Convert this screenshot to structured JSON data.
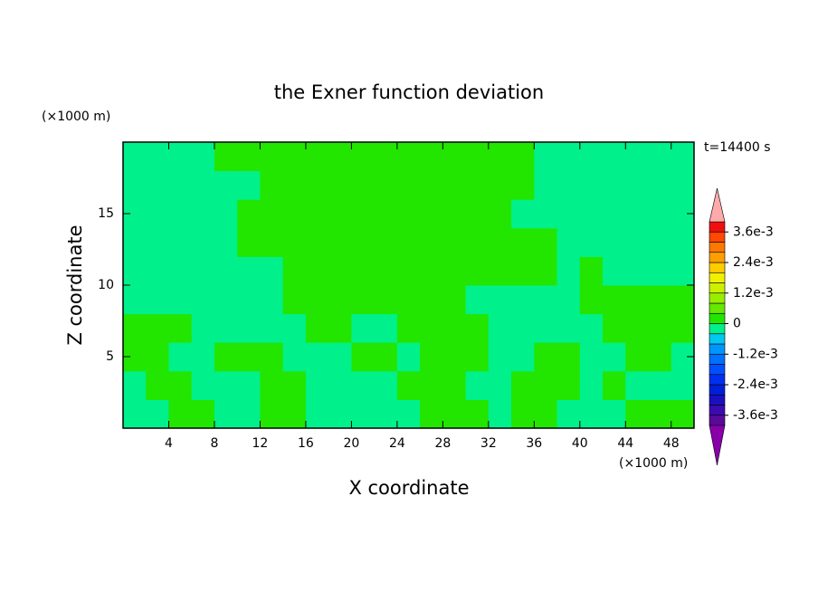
{
  "chart_data": {
    "type": "contour",
    "title": "the Exner function deviation",
    "x_label": "X coordinate",
    "y_label": "Z coordinate",
    "x_unit": "(×1000 m)",
    "y_unit": "(×1000 m)",
    "annotation": "t=14400 s",
    "xlim": [
      0,
      50
    ],
    "ylim": [
      0,
      20
    ],
    "xticks": [
      4,
      8,
      12,
      16,
      20,
      24,
      28,
      32,
      36,
      40,
      44,
      48
    ],
    "yticks": [
      5,
      10,
      15
    ],
    "x": [
      1,
      3,
      5,
      7,
      9,
      11,
      13,
      15,
      17,
      19,
      21,
      23,
      25,
      27,
      29,
      31,
      33,
      35,
      37,
      39,
      41,
      43,
      45,
      47,
      49
    ],
    "y": [
      1,
      3,
      5,
      7,
      9,
      11,
      13,
      15,
      17,
      19
    ],
    "z": [
      [
        -0.0002,
        -0.0002,
        0.0002,
        0.0002,
        -0.0002,
        -0.0002,
        0.0002,
        0.0002,
        -0.0002,
        -0.0002,
        -0.0002,
        -0.0002,
        -0.0002,
        0.0002,
        0.0002,
        0.0002,
        -0.0002,
        0.0002,
        0.0002,
        -0.0002,
        -0.0002,
        -0.0002,
        0.0002,
        0.0002,
        0.0002
      ],
      [
        -0.0002,
        0.0002,
        0.0002,
        -0.0002,
        -0.0002,
        -0.0002,
        0.0002,
        0.0002,
        -0.0002,
        -0.0002,
        -0.0002,
        -0.0002,
        0.0002,
        0.0002,
        0.0002,
        -0.0002,
        -0.0002,
        0.0002,
        0.0002,
        0.0002,
        -0.0002,
        0.0002,
        -0.0002,
        -0.0002,
        -0.0002
      ],
      [
        0.0002,
        0.0002,
        -0.0002,
        -0.0002,
        0.0002,
        0.0002,
        0.0002,
        -0.0002,
        -0.0002,
        -0.0002,
        0.0002,
        0.0002,
        -0.0002,
        0.0002,
        0.0002,
        0.0002,
        -0.0002,
        -0.0002,
        0.0002,
        0.0002,
        -0.0002,
        -0.0002,
        0.0002,
        0.0002,
        -0.0002
      ],
      [
        0.0002,
        0.0002,
        0.0002,
        -0.0002,
        -0.0002,
        -0.0002,
        -0.0002,
        -0.0002,
        0.0002,
        0.0002,
        -0.0002,
        -0.0002,
        0.0002,
        0.0002,
        0.0002,
        0.0002,
        -0.0002,
        -0.0002,
        -0.0002,
        -0.0002,
        -0.0002,
        0.0002,
        0.0002,
        0.0002,
        0.0002
      ],
      [
        -0.0002,
        -0.0002,
        -0.0002,
        -0.0002,
        -0.0002,
        -0.0002,
        -0.0002,
        0.0002,
        0.0002,
        0.0002,
        0.0002,
        0.0002,
        0.0002,
        0.0002,
        0.0002,
        -0.0002,
        -0.0002,
        -0.0002,
        -0.0002,
        -0.0002,
        0.0002,
        0.0002,
        0.0002,
        0.0002,
        0.0002
      ],
      [
        -0.0002,
        -0.0002,
        -0.0002,
        -0.0002,
        -0.0002,
        -0.0002,
        -0.0002,
        0.0002,
        0.0002,
        0.0002,
        0.0002,
        0.0002,
        0.0002,
        0.0002,
        0.0002,
        0.0002,
        0.0002,
        0.0002,
        0.0002,
        -0.0002,
        0.0002,
        -0.0002,
        -0.0002,
        -0.0002,
        -0.0002
      ],
      [
        -0.0002,
        -0.0002,
        -0.0002,
        -0.0002,
        -0.0002,
        0.0002,
        0.0002,
        0.0002,
        0.0002,
        0.0002,
        0.0002,
        0.0002,
        0.0002,
        0.0002,
        0.0002,
        0.0002,
        0.0002,
        0.0002,
        0.0002,
        -0.0002,
        -0.0002,
        -0.0002,
        -0.0002,
        -0.0002,
        -0.0002
      ],
      [
        -0.0002,
        -0.0002,
        -0.0002,
        -0.0002,
        -0.0002,
        0.0002,
        0.0002,
        0.0002,
        0.0002,
        0.0002,
        0.0002,
        0.0002,
        0.0002,
        0.0002,
        0.0002,
        0.0002,
        0.0002,
        -0.0002,
        -0.0002,
        -0.0002,
        -0.0002,
        -0.0002,
        -0.0002,
        -0.0002,
        -0.0002
      ],
      [
        -0.0002,
        -0.0002,
        -0.0002,
        -0.0002,
        -0.0002,
        -0.0002,
        0.0002,
        0.0002,
        0.0002,
        0.0002,
        0.0002,
        0.0002,
        0.0002,
        0.0002,
        0.0002,
        0.0002,
        0.0002,
        0.0002,
        -0.0002,
        -0.0002,
        -0.0002,
        -0.0002,
        -0.0002,
        -0.0002,
        -0.0002
      ],
      [
        -0.0002,
        -0.0002,
        -0.0002,
        -0.0002,
        0.0002,
        0.0002,
        0.0002,
        0.0002,
        0.0002,
        0.0002,
        0.0002,
        0.0002,
        0.0002,
        0.0002,
        0.0002,
        0.0002,
        0.0002,
        0.0002,
        -0.0002,
        -0.0002,
        -0.0002,
        -0.0002,
        -0.0002,
        -0.0002,
        -0.0002
      ]
    ],
    "levels": [
      -0.004,
      -0.0036,
      -0.0032,
      -0.0028,
      -0.0024,
      -0.002,
      -0.0016,
      -0.0012,
      -0.0008,
      -0.0004,
      0,
      0.0004,
      0.0008,
      0.0012,
      0.0016,
      0.002,
      0.0024,
      0.0028,
      0.0032,
      0.0036,
      0.004
    ],
    "colors": [
      "#5a0a9a",
      "#3b0bb0",
      "#1a10c0",
      "#0020d8",
      "#0030f0",
      "#0050ff",
      "#0070ff",
      "#0096ff",
      "#00c8f0",
      "#00f08c",
      "#22e600",
      "#66e800",
      "#99ee00",
      "#ccf000",
      "#f0f000",
      "#ffcc00",
      "#ffa000",
      "#ff7800",
      "#ff4800",
      "#ee1010"
    ],
    "under_color": "#8800aa",
    "over_color": "#ffaaaa",
    "colorbar_ticks": [
      {
        "value": -0.0036,
        "label": "-3.6e-3"
      },
      {
        "value": -0.0024,
        "label": "-2.4e-3"
      },
      {
        "value": -0.0012,
        "label": "-1.2e-3"
      },
      0,
      {
        "value": 0.0012,
        "label": "1.2e-3"
      },
      {
        "value": 0.0024,
        "label": "2.4e-3"
      },
      {
        "value": 0.0036,
        "label": "3.6e-3"
      }
    ]
  }
}
